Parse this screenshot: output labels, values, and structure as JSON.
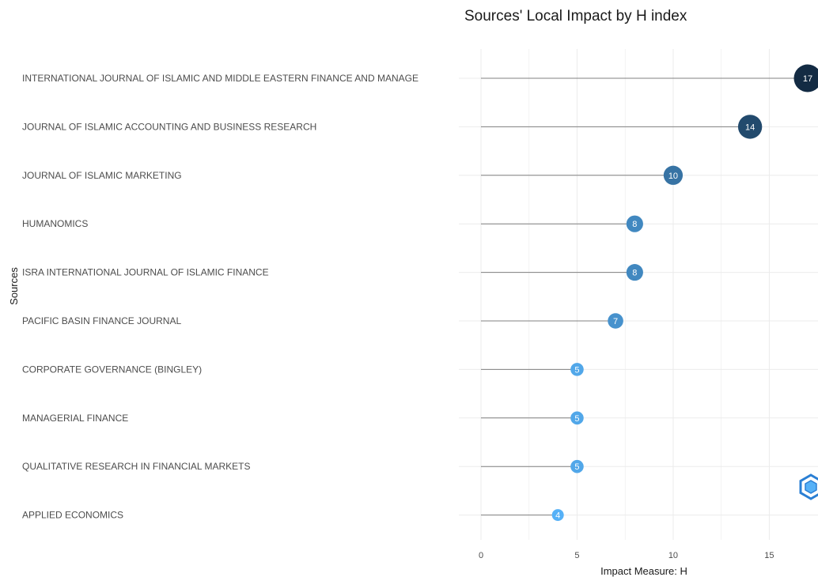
{
  "chart_data": {
    "type": "scatter",
    "title": "Sources' Local Impact by H index",
    "xlabel": "Impact Measure: H",
    "ylabel": "Sources",
    "xlim": [
      0,
      17
    ],
    "xticks": [
      0,
      5,
      10,
      15
    ],
    "grid": true,
    "categories": [
      "INTERNATIONAL JOURNAL OF ISLAMIC AND MIDDLE EASTERN FINANCE AND MANAGE",
      "JOURNAL OF ISLAMIC ACCOUNTING AND BUSINESS RESEARCH",
      "JOURNAL OF ISLAMIC MARKETING",
      "HUMANOMICS",
      "ISRA INTERNATIONAL JOURNAL OF ISLAMIC FINANCE",
      "PACIFIC BASIN FINANCE JOURNAL",
      "CORPORATE GOVERNANCE (BINGLEY)",
      "MANAGERIAL FINANCE",
      "QUALITATIVE RESEARCH IN FINANCIAL MARKETS",
      "APPLIED ECONOMICS"
    ],
    "values": [
      17,
      14,
      10,
      8,
      8,
      7,
      5,
      5,
      5,
      4
    ],
    "colors": {
      "low": "#56B1F7",
      "high": "#132B43",
      "lollipop_line": "#808080",
      "grid": "#ebebeb",
      "watermark": "#2a7fd4"
    },
    "watermark_icon": "hexagon-logo-icon"
  }
}
